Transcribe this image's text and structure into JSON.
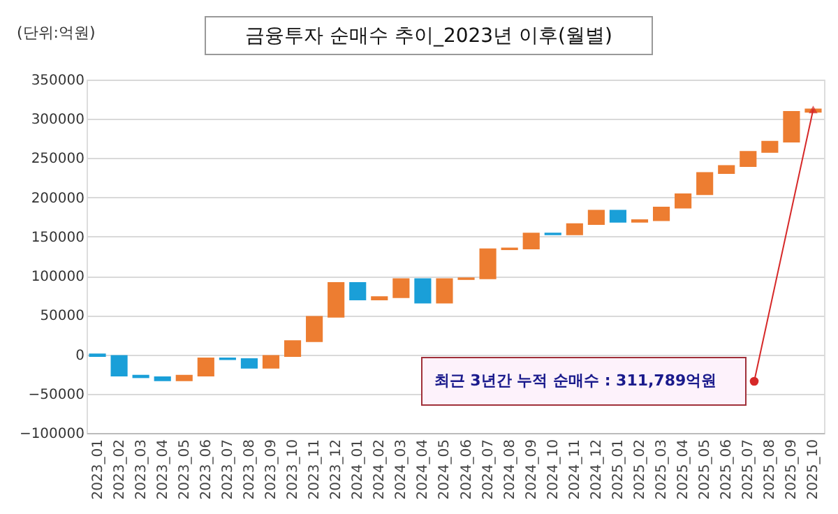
{
  "chart_data": {
    "type": "bar",
    "title": "금융투자 순매수 추이_2023년 이후(월별)",
    "annotations": [
      "(단위:억원)",
      "최근 3년간 누적 순매수 : 311,789억원"
    ],
    "categories": [
      "2023_01",
      "2023_02",
      "2023_03",
      "2023_04",
      "2023_05",
      "2023_06",
      "2023_07",
      "2023_08",
      "2023_09",
      "2023_10",
      "2023_11",
      "2023_12",
      "2024_01",
      "2024_02",
      "2024_03",
      "2024_04",
      "2024_05",
      "2024_06",
      "2024_07",
      "2024_08",
      "2024_09",
      "2024_10",
      "2024_11",
      "2024_12",
      "2025_01",
      "2025_02",
      "2025_03",
      "2025_04",
      "2025_05",
      "2025_06",
      "2025_07",
      "2025_08",
      "2025_09",
      "2025_10"
    ],
    "values": [
      -2000,
      -25000,
      -2000,
      -4000,
      6000,
      22000,
      -1000,
      -11000,
      15000,
      19000,
      31000,
      43000,
      -21000,
      3000,
      23000,
      -30000,
      30000,
      1000,
      37000,
      1000,
      19000,
      -1000,
      13000,
      17000,
      -14000,
      2000,
      16000,
      17000,
      27000,
      9000,
      18000,
      13000,
      38000,
      3000
    ],
    "base": [
      0,
      -2000,
      -27000,
      -29000,
      -33000,
      -27000,
      -5000,
      -6000,
      -17000,
      -2000,
      17000,
      48000,
      91000,
      70000,
      73000,
      96000,
      66000,
      96000,
      97000,
      134000,
      135000,
      154000,
      153000,
      166000,
      183000,
      169000,
      171000,
      187000,
      204000,
      231000,
      240000,
      258000,
      271000,
      309000
    ],
    "colors": [
      "#1a9fd8",
      "#1a9fd8",
      "#1a9fd8",
      "#1a9fd8",
      "#ed7d31",
      "#ed7d31",
      "#1a9fd8",
      "#1a9fd8",
      "#ed7d31",
      "#ed7d31",
      "#ed7d31",
      "#ed7d31",
      "#1a9fd8",
      "#ed7d31",
      "#ed7d31",
      "#1a9fd8",
      "#ed7d31",
      "#ed7d31",
      "#ed7d31",
      "#ed7d31",
      "#ed7d31",
      "#1a9fd8",
      "#ed7d31",
      "#ed7d31",
      "#1a9fd8",
      "#ed7d31",
      "#ed7d31",
      "#ed7d31",
      "#ed7d31",
      "#ed7d31",
      "#ed7d31",
      "#ed7d31",
      "#ed7d31",
      "#ed7d31"
    ],
    "ylim": [
      -100000,
      350000
    ],
    "yticks": [
      -100000,
      -50000,
      0,
      50000,
      100000,
      150000,
      200000,
      250000,
      300000,
      350000
    ],
    "grid": "y"
  }
}
